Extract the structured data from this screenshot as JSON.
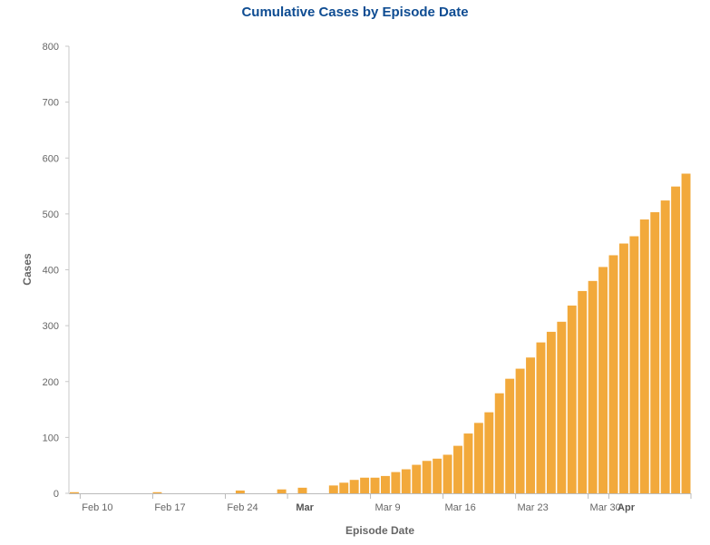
{
  "chart_data": {
    "type": "bar",
    "title": "Cumulative Cases by Episode Date",
    "xlabel": "Episode Date",
    "ylabel": "Cases",
    "ylim": [
      0,
      800
    ],
    "yticks": [
      0,
      100,
      200,
      300,
      400,
      500,
      600,
      700,
      800
    ],
    "grid": false,
    "bar_color": "#f2a93b",
    "start_date": "Feb 10",
    "x_tick_labels": [
      {
        "label": "Feb 10",
        "index": 0,
        "bold": false
      },
      {
        "label": "Feb 17",
        "index": 7,
        "bold": false
      },
      {
        "label": "Feb 24",
        "index": 14,
        "bold": false
      },
      {
        "label": "Mar",
        "index": 20,
        "bold": true
      },
      {
        "label": "Mar 9",
        "index": 28,
        "bold": false
      },
      {
        "label": "Mar 16",
        "index": 35,
        "bold": false
      },
      {
        "label": "Mar 23",
        "index": 42,
        "bold": false
      },
      {
        "label": "Mar 30",
        "index": 49,
        "bold": false
      },
      {
        "label": "Apr",
        "index": 51,
        "bold": true
      }
    ],
    "categories": [
      "Feb 9",
      "Feb 10",
      "Feb 11",
      "Feb 12",
      "Feb 13",
      "Feb 14",
      "Feb 15",
      "Feb 16",
      "Feb 17",
      "Feb 18",
      "Feb 19",
      "Feb 20",
      "Feb 21",
      "Feb 22",
      "Feb 23",
      "Feb 24",
      "Feb 25",
      "Feb 26",
      "Feb 27",
      "Feb 28",
      "Feb 29",
      "Mar 1",
      "Mar 2",
      "Mar 3",
      "Mar 4",
      "Mar 5",
      "Mar 6",
      "Mar 7",
      "Mar 8",
      "Mar 9",
      "Mar 10",
      "Mar 11",
      "Mar 12",
      "Mar 13",
      "Mar 14",
      "Mar 15",
      "Mar 16",
      "Mar 17",
      "Mar 18",
      "Mar 19",
      "Mar 20",
      "Mar 21",
      "Mar 22",
      "Mar 23",
      "Mar 24",
      "Mar 25",
      "Mar 26",
      "Mar 27",
      "Mar 28",
      "Mar 29",
      "Mar 30",
      "Mar 31",
      "Apr 1",
      "Apr 2",
      "Apr 3",
      "Apr 4",
      "Apr 5",
      "Apr 6",
      "Apr 7",
      "Apr 8"
    ],
    "values": [
      2,
      0,
      0,
      0,
      0,
      0,
      0,
      0,
      2,
      0,
      0,
      0,
      0,
      0,
      0,
      0,
      5,
      0,
      0,
      0,
      7,
      0,
      10,
      0,
      0,
      14,
      19,
      24,
      28,
      28,
      31,
      38,
      43,
      51,
      58,
      62,
      69,
      85,
      107,
      126,
      145,
      179,
      205,
      223,
      243,
      270,
      289,
      307,
      336,
      362,
      380,
      405,
      426,
      447,
      460,
      490,
      503,
      524,
      549,
      572
    ]
  }
}
